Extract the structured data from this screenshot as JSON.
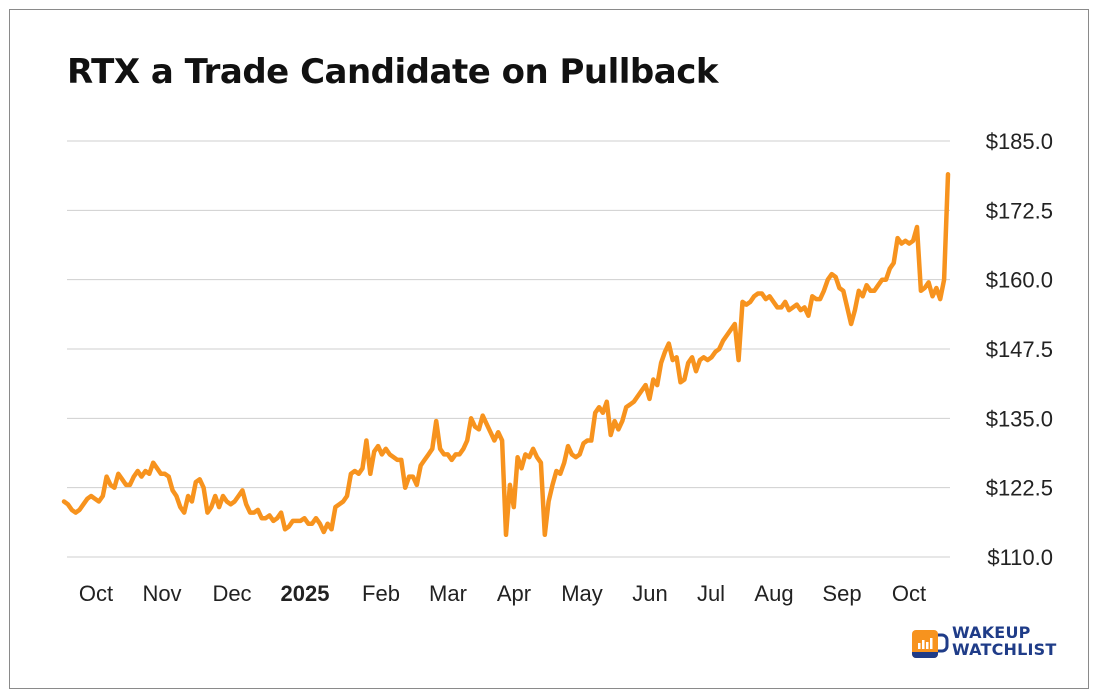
{
  "title": "RTX a Trade Candidate on Pullback",
  "brand": {
    "line1": "WAKEUP",
    "line2": "WATCHLIST",
    "text_color": "#1f3c88",
    "mug_color": "#f7931e"
  },
  "colors": {
    "line": "#f7931e",
    "grid": "#cfcfcf"
  },
  "chart_data": {
    "type": "line",
    "title": "RTX a Trade Candidate on Pullback",
    "xlabel": "",
    "ylabel": "",
    "ylim": [
      110,
      185
    ],
    "yticks": [
      "$185.0",
      "$172.5",
      "$160.0",
      "$147.5",
      "$135.0",
      "$122.5",
      "$110.0"
    ],
    "ytick_values": [
      185,
      172.5,
      160,
      147.5,
      135,
      122.5,
      110
    ],
    "xticks": [
      "Oct",
      "Nov",
      "Dec",
      "2025",
      "Feb",
      "Mar",
      "Apr",
      "May",
      "Jun",
      "Jul",
      "Aug",
      "Sep",
      "Oct"
    ],
    "xtick_bold": [
      false,
      false,
      false,
      true,
      false,
      false,
      false,
      false,
      false,
      false,
      false,
      false,
      false
    ],
    "grid": true,
    "y_axis_side": "right",
    "series": [
      {
        "values": [
          120,
          119.5,
          118.5,
          118,
          118.5,
          119.5,
          120.5,
          121,
          120.5,
          120,
          121,
          124.5,
          123,
          122.5,
          125,
          124,
          123,
          123,
          124.5,
          125.5,
          124.5,
          125.5,
          125,
          127,
          126,
          125,
          125,
          124.5,
          122,
          121,
          119,
          118,
          121,
          120,
          123.5,
          124,
          122.5,
          118,
          119,
          121,
          119,
          121,
          120,
          119.5,
          120,
          121,
          122,
          119.5,
          118,
          118,
          118.5,
          117,
          117,
          117.5,
          116.5,
          117,
          118,
          115,
          115.5,
          116.5,
          116.5,
          116.5,
          117,
          116,
          116,
          117,
          116,
          114.5,
          116,
          115,
          119,
          119.5,
          120,
          121,
          125,
          125.5,
          125,
          126,
          131,
          125,
          129,
          130,
          128.5,
          129.5,
          128.5,
          128,
          127.5,
          127.5,
          122.5,
          124.5,
          124.5,
          123,
          126.5,
          127.5,
          128.5,
          129.5,
          134.5,
          129.5,
          128.5,
          128.5,
          127.5,
          128.5,
          128.5,
          129.5,
          131,
          135,
          133.5,
          133,
          135.5,
          134,
          132.5,
          131,
          132.5,
          131,
          114,
          123,
          119,
          128,
          126,
          128.5,
          128,
          129.5,
          128,
          127,
          114,
          120,
          123,
          125.5,
          125,
          127,
          130,
          128.5,
          128,
          128.5,
          130.5,
          131,
          131,
          136,
          137,
          136,
          138,
          132,
          134.5,
          133,
          134.5,
          137,
          137.5,
          138,
          139,
          140,
          141,
          138.5,
          142,
          141,
          145,
          147,
          148.5,
          145.5,
          146,
          141.5,
          142,
          145,
          146,
          143.5,
          145.5,
          146,
          145.5,
          146,
          147,
          147.5,
          149,
          150,
          151,
          152,
          145.5,
          156,
          155.5,
          156,
          157,
          157.5,
          157.5,
          156.5,
          157,
          156,
          155,
          155,
          156,
          154.5,
          155,
          155.5,
          154.5,
          155,
          153.5,
          157,
          156.5,
          156.5,
          158,
          160,
          161,
          160.5,
          158.5,
          158,
          155,
          152,
          154.5,
          158,
          157,
          159,
          158,
          158,
          159,
          160,
          160,
          162,
          163,
          167.5,
          166.5,
          167,
          166.5,
          167,
          169.5,
          158,
          158.5,
          159.5,
          157,
          158.5,
          156.5,
          160,
          179
        ]
      }
    ]
  }
}
